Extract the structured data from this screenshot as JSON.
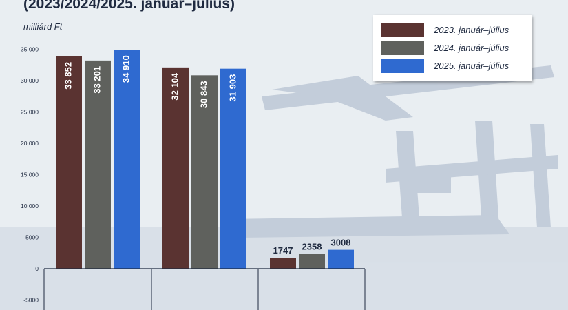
{
  "header": {
    "title": "(2023/2024/2025. január–július)",
    "unit": "milliárd Ft"
  },
  "chart_data": {
    "type": "bar",
    "title": "(2023/2024/2025. január–július)",
    "ylabel": "milliárd Ft",
    "xlabel": "",
    "categories": [
      "",
      "",
      ""
    ],
    "ylim": [
      -5000,
      35000
    ],
    "yticks": [
      -5000,
      0,
      5000,
      10000,
      15000,
      20000,
      25000,
      30000,
      35000
    ],
    "ytick_labels": [
      "-5000",
      "0",
      "5000",
      "10 000",
      "15 000",
      "20 000",
      "25 000",
      "30 000",
      "35 000"
    ],
    "grid": false,
    "legend_position": "top-right",
    "series": [
      {
        "name": "2023. január–július",
        "color": "#5a3331",
        "values": [
          33852,
          32104,
          1747
        ],
        "labels": [
          "33 852",
          "32 104",
          "1747"
        ]
      },
      {
        "name": "2024. január–július",
        "color": "#5f615d",
        "values": [
          33201,
          30843,
          2358
        ],
        "labels": [
          "33 201",
          "30 843",
          "2358"
        ]
      },
      {
        "name": "2025. január–július",
        "color": "#2f6ad0",
        "values": [
          34910,
          31903,
          3008
        ],
        "labels": [
          "34 910",
          "31 903",
          "3008"
        ]
      }
    ]
  }
}
